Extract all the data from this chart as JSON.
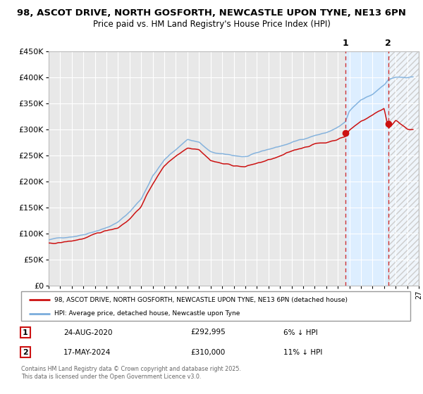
{
  "title1": "98, ASCOT DRIVE, NORTH GOSFORTH, NEWCASTLE UPON TYNE, NE13 6PN",
  "title2": "Price paid vs. HM Land Registry's House Price Index (HPI)",
  "legend_label1": "98, ASCOT DRIVE, NORTH GOSFORTH, NEWCASTLE UPON TYNE, NE13 6PN (detached house)",
  "legend_label2": "HPI: Average price, detached house, Newcastle upon Tyne",
  "hpi_color": "#7aaddc",
  "price_color": "#cc1111",
  "marker1_year": 2020.65,
  "marker1_value": 292995,
  "marker2_year": 2024.37,
  "marker2_value": 310000,
  "marker1_date": "24-AUG-2020",
  "marker1_price": "£292,995",
  "marker1_hpi": "6% ↓ HPI",
  "marker2_date": "17-MAY-2024",
  "marker2_price": "£310,000",
  "marker2_hpi": "11% ↓ HPI",
  "footer": "Contains HM Land Registry data © Crown copyright and database right 2025.\nThis data is licensed under the Open Government Licence v3.0.",
  "xmin": 1995,
  "xmax": 2027,
  "ymin": 0,
  "ymax": 450000,
  "bg_color": "#e8e8e8",
  "shade_color": "#ddeeff",
  "hatch_color": "#cccccc"
}
